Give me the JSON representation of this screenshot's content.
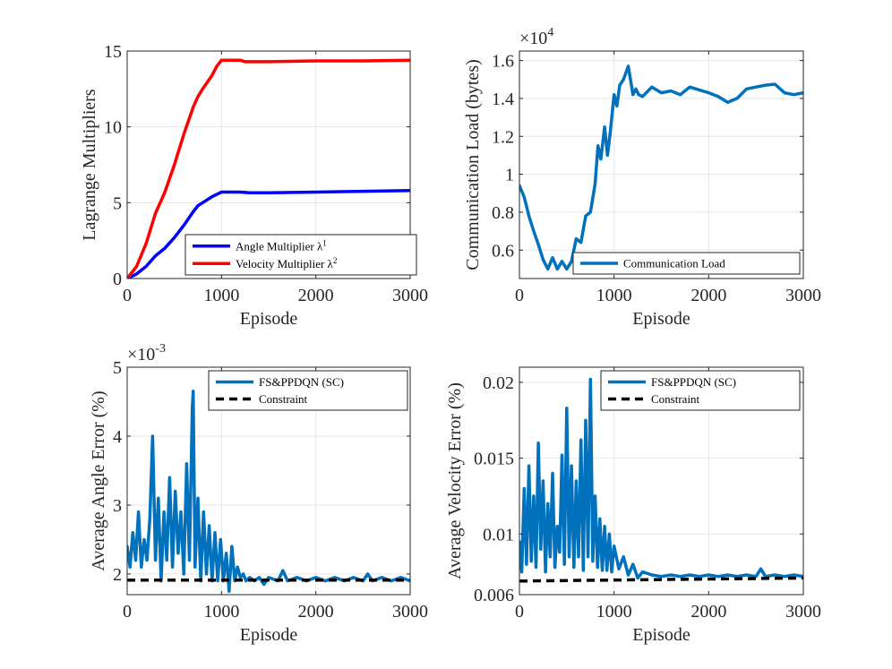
{
  "chart_data": [
    {
      "type": "line",
      "xlabel": "Episode",
      "ylabel": "Lagrange Multipliers",
      "xlim": [
        0,
        3000
      ],
      "ylim": [
        0,
        15
      ],
      "xticks": [
        "0",
        "1000",
        "2000",
        "3000"
      ],
      "yticks": [
        "0",
        "5",
        "10",
        "15"
      ],
      "exponent_base": "",
      "exponent_sup": "",
      "legend_position": "bottom-right",
      "series": [
        {
          "name": "Angle Multiplier λ",
          "name_sup": "1",
          "color": "#0000ff",
          "dashed": false,
          "x": [
            0,
            100,
            200,
            300,
            400,
            500,
            600,
            700,
            750,
            800,
            900,
            1000,
            1100,
            1200,
            1300,
            1500,
            2000,
            2500,
            3000
          ],
          "y": [
            0,
            0.3,
            0.8,
            1.5,
            2.0,
            2.7,
            3.5,
            4.4,
            4.8,
            5.0,
            5.4,
            5.7,
            5.7,
            5.7,
            5.65,
            5.65,
            5.7,
            5.75,
            5.8
          ]
        },
        {
          "name": "Velocity Multiplier λ",
          "name_sup": "2",
          "color": "#ff0000",
          "dashed": false,
          "x": [
            0,
            100,
            200,
            300,
            400,
            500,
            600,
            700,
            750,
            800,
            900,
            950,
            1000,
            1100,
            1200,
            1250,
            1300,
            1500,
            2000,
            2500,
            3000
          ],
          "y": [
            0,
            0.8,
            2.3,
            4.3,
            5.7,
            7.5,
            9.5,
            11.3,
            12.0,
            12.5,
            13.4,
            14.0,
            14.4,
            14.4,
            14.4,
            14.3,
            14.3,
            14.3,
            14.35,
            14.35,
            14.4
          ]
        }
      ]
    },
    {
      "type": "line",
      "xlabel": "Episode",
      "ylabel": "Communication Load (bytes)",
      "xlim": [
        0,
        3000
      ],
      "ylim": [
        4500,
        16500
      ],
      "xticks": [
        "0",
        "1000",
        "2000",
        "3000"
      ],
      "yticks": [
        "0.6",
        "0.8",
        "1",
        "1.2",
        "1.4",
        "1.6"
      ],
      "exponent_base": "×10",
      "exponent_sup": "4",
      "legend_position": "bottom-right",
      "series": [
        {
          "name": "Communication Load",
          "name_sup": "",
          "color": "#0072bd",
          "dashed": false,
          "x": [
            0,
            50,
            100,
            150,
            200,
            250,
            300,
            350,
            400,
            450,
            500,
            550,
            600,
            650,
            700,
            750,
            800,
            830,
            860,
            900,
            930,
            960,
            1000,
            1030,
            1060,
            1100,
            1150,
            1200,
            1230,
            1260,
            1300,
            1400,
            1500,
            1600,
            1700,
            1800,
            1900,
            2000,
            2100,
            2200,
            2250,
            2300,
            2400,
            2500,
            2600,
            2700,
            2800,
            2900,
            3000
          ],
          "y": [
            9400,
            8800,
            7800,
            7000,
            6300,
            5500,
            5000,
            5600,
            5000,
            5400,
            5000,
            5400,
            6600,
            6400,
            7800,
            8000,
            9500,
            11500,
            10800,
            12500,
            11000,
            12200,
            14200,
            13600,
            14700,
            15000,
            15700,
            14200,
            14500,
            14200,
            14100,
            14600,
            14300,
            14400,
            14200,
            14600,
            14450,
            14300,
            14100,
            13800,
            13900,
            14000,
            14500,
            14600,
            14700,
            14750,
            14300,
            14200,
            14300
          ]
        }
      ]
    },
    {
      "type": "line",
      "xlabel": "Episode",
      "ylabel": "Average Angle Error (%)",
      "xlim": [
        0,
        3000
      ],
      "ylim": [
        0.0017,
        0.005
      ],
      "xticks": [
        "0",
        "1000",
        "2000",
        "3000"
      ],
      "yticks": [
        "2",
        "3",
        "4",
        "5"
      ],
      "exponent_base": "×10",
      "exponent_sup": "-3",
      "legend_position": "top-right",
      "series": [
        {
          "name": "FS&PPDQN (SC)",
          "name_sup": "",
          "color": "#0072bd",
          "dashed": false,
          "x": [
            0,
            30,
            60,
            90,
            120,
            150,
            180,
            210,
            240,
            270,
            300,
            330,
            360,
            390,
            420,
            450,
            480,
            510,
            540,
            570,
            600,
            630,
            660,
            690,
            700,
            720,
            750,
            780,
            810,
            840,
            870,
            900,
            930,
            960,
            990,
            1020,
            1050,
            1080,
            1110,
            1140,
            1170,
            1200,
            1230,
            1260,
            1300,
            1350,
            1400,
            1450,
            1500,
            1600,
            1650,
            1700,
            1800,
            1900,
            2000,
            2100,
            2200,
            2300,
            2400,
            2500,
            2550,
            2600,
            2700,
            2800,
            2900,
            3000
          ],
          "y": [
            0.0024,
            0.0021,
            0.0026,
            0.0022,
            0.0029,
            0.0021,
            0.0025,
            0.0022,
            0.0028,
            0.004,
            0.0022,
            0.0031,
            0.0019,
            0.0029,
            0.0022,
            0.0034,
            0.0021,
            0.0032,
            0.0023,
            0.0029,
            0.002,
            0.0036,
            0.0022,
            0.0044,
            0.00465,
            0.0021,
            0.0031,
            0.0019,
            0.0029,
            0.002,
            0.0027,
            0.0019,
            0.0026,
            0.0019,
            0.0025,
            0.0019,
            0.0023,
            0.00175,
            0.0024,
            0.0019,
            0.0021,
            0.00195,
            0.002,
            0.0019,
            0.00195,
            0.0019,
            0.00195,
            0.00185,
            0.00195,
            0.0019,
            0.00205,
            0.0019,
            0.00195,
            0.0019,
            0.00195,
            0.0019,
            0.00195,
            0.0019,
            0.00195,
            0.0019,
            0.002,
            0.0019,
            0.00195,
            0.0019,
            0.00195,
            0.0019
          ]
        },
        {
          "name": "Constraint",
          "name_sup": "",
          "color": "#000000",
          "dashed": true,
          "x": [
            0,
            3000
          ],
          "y": [
            0.00191,
            0.00191
          ]
        }
      ]
    },
    {
      "type": "line",
      "xlabel": "Episode",
      "ylabel": "Average Velocity Error (%)",
      "xlim": [
        0,
        3000
      ],
      "ylim": [
        0.006,
        0.021
      ],
      "xticks": [
        "0",
        "1000",
        "2000",
        "3000"
      ],
      "yticks": [
        "0.006",
        "0.01",
        "0.015",
        "0.02"
      ],
      "exponent_base": "",
      "exponent_sup": "",
      "legend_position": "top-right",
      "series": [
        {
          "name": "FS&PPDQN (SC)",
          "name_sup": "",
          "color": "#0072bd",
          "dashed": false,
          "x": [
            0,
            25,
            50,
            75,
            100,
            125,
            150,
            175,
            200,
            225,
            250,
            275,
            300,
            325,
            350,
            375,
            400,
            425,
            450,
            475,
            500,
            525,
            550,
            575,
            600,
            625,
            650,
            675,
            700,
            725,
            750,
            775,
            800,
            825,
            850,
            875,
            900,
            925,
            950,
            975,
            1000,
            1050,
            1100,
            1150,
            1200,
            1250,
            1300,
            1400,
            1500,
            1600,
            1700,
            1800,
            1900,
            2000,
            2100,
            2200,
            2300,
            2400,
            2500,
            2550,
            2600,
            2700,
            2800,
            2900,
            3000
          ],
          "y": [
            0.0095,
            0.0075,
            0.013,
            0.008,
            0.0145,
            0.0082,
            0.0125,
            0.0078,
            0.016,
            0.009,
            0.0135,
            0.0075,
            0.012,
            0.0085,
            0.014,
            0.0078,
            0.0105,
            0.0088,
            0.0152,
            0.008,
            0.0183,
            0.0085,
            0.0145,
            0.0078,
            0.0135,
            0.0085,
            0.0162,
            0.0076,
            0.0175,
            0.0085,
            0.0202,
            0.0082,
            0.0125,
            0.0078,
            0.011,
            0.0076,
            0.0105,
            0.0076,
            0.01,
            0.0075,
            0.0092,
            0.0077,
            0.0085,
            0.0073,
            0.008,
            0.0071,
            0.0075,
            0.0073,
            0.0072,
            0.0073,
            0.0072,
            0.0073,
            0.0072,
            0.0073,
            0.0072,
            0.0073,
            0.0072,
            0.0073,
            0.0072,
            0.0077,
            0.0072,
            0.0073,
            0.0072,
            0.0073,
            0.0072
          ]
        },
        {
          "name": "Constraint",
          "name_sup": "",
          "color": "#000000",
          "dashed": true,
          "x": [
            0,
            3000
          ],
          "y": [
            0.0069,
            0.0071
          ]
        }
      ]
    }
  ]
}
